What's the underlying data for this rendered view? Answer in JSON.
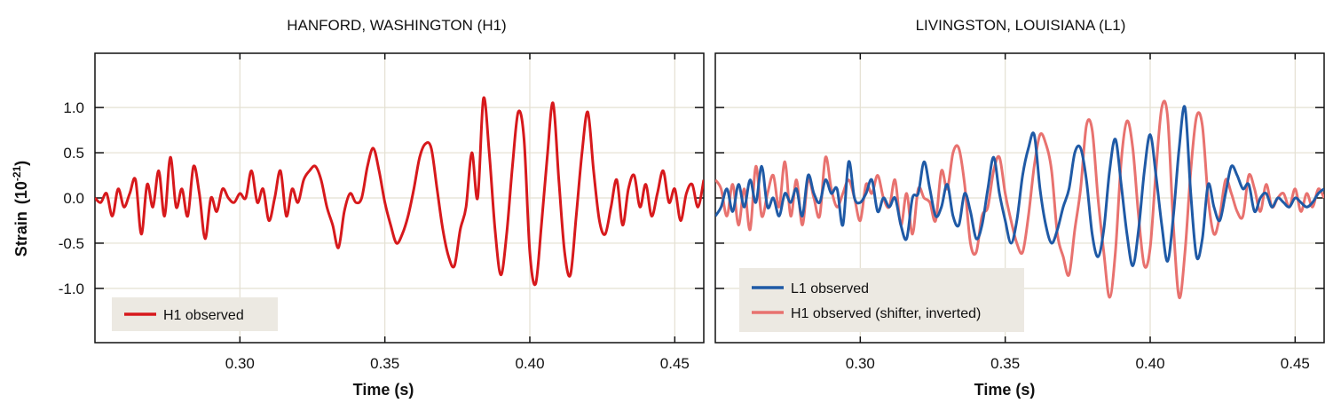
{
  "chart_data": [
    {
      "type": "line",
      "title": "HANFORD, WASHINGTON (H1)",
      "xlabel": "Time (s)",
      "ylabel": "Strain",
      "ylabel_unit_base": "(10",
      "ylabel_unit_exp": "-21",
      "ylabel_unit_close": ")",
      "xlim": [
        0.25,
        0.46
      ],
      "ylim": [
        -1.6,
        1.6
      ],
      "xticks": [
        0.3,
        0.35,
        0.4,
        0.45
      ],
      "xtick_labels": [
        "0.30",
        "0.35",
        "0.40",
        "0.45"
      ],
      "yticks": [
        1.0,
        0.5,
        0.0,
        -0.5,
        -1.0
      ],
      "ytick_labels": [
        "1.0",
        "0.5",
        "0.0",
        "-0.5",
        "-1.0"
      ],
      "grid": true,
      "legend_position": "bottom-left",
      "series": [
        {
          "name": "H1 observed",
          "color": "#d7191c",
          "x": [
            0.25,
            0.252,
            0.254,
            0.256,
            0.258,
            0.26,
            0.262,
            0.264,
            0.266,
            0.268,
            0.27,
            0.272,
            0.274,
            0.276,
            0.278,
            0.28,
            0.282,
            0.284,
            0.286,
            0.288,
            0.29,
            0.292,
            0.294,
            0.296,
            0.298,
            0.3,
            0.302,
            0.304,
            0.306,
            0.308,
            0.31,
            0.312,
            0.314,
            0.316,
            0.318,
            0.32,
            0.322,
            0.324,
            0.326,
            0.328,
            0.33,
            0.332,
            0.334,
            0.336,
            0.338,
            0.34,
            0.342,
            0.344,
            0.346,
            0.348,
            0.35,
            0.352,
            0.354,
            0.356,
            0.358,
            0.36,
            0.362,
            0.364,
            0.366,
            0.368,
            0.37,
            0.372,
            0.374,
            0.376,
            0.378,
            0.38,
            0.382,
            0.384,
            0.386,
            0.388,
            0.39,
            0.392,
            0.394,
            0.396,
            0.398,
            0.4,
            0.402,
            0.404,
            0.406,
            0.408,
            0.41,
            0.412,
            0.414,
            0.416,
            0.418,
            0.42,
            0.422,
            0.424,
            0.426,
            0.428,
            0.43,
            0.432,
            0.434,
            0.436,
            0.438,
            0.44,
            0.442,
            0.444,
            0.446,
            0.448,
            0.45,
            0.452,
            0.454,
            0.456,
            0.458,
            0.46
          ],
          "y": [
            0.0,
            -0.05,
            0.05,
            -0.2,
            0.1,
            -0.1,
            0.05,
            0.2,
            -0.4,
            0.15,
            -0.1,
            0.3,
            -0.2,
            0.45,
            -0.1,
            0.1,
            -0.2,
            0.35,
            0.05,
            -0.45,
            0.0,
            -0.15,
            0.1,
            0.0,
            -0.05,
            0.05,
            0.0,
            0.3,
            -0.05,
            0.1,
            -0.25,
            0.0,
            0.3,
            -0.2,
            0.1,
            -0.05,
            0.2,
            0.3,
            0.35,
            0.2,
            -0.1,
            -0.3,
            -0.55,
            -0.15,
            0.05,
            -0.05,
            0.0,
            0.35,
            0.55,
            0.3,
            -0.05,
            -0.3,
            -0.5,
            -0.4,
            -0.2,
            0.1,
            0.45,
            0.6,
            0.55,
            0.1,
            -0.35,
            -0.65,
            -0.75,
            -0.35,
            -0.1,
            0.5,
            0.0,
            1.1,
            0.5,
            -0.35,
            -0.85,
            -0.4,
            0.35,
            0.95,
            0.65,
            -0.6,
            -0.95,
            -0.3,
            0.45,
            1.05,
            0.2,
            -0.6,
            -0.85,
            -0.2,
            0.5,
            0.95,
            0.3,
            -0.25,
            -0.4,
            -0.1,
            0.2,
            -0.3,
            0.1,
            0.25,
            -0.1,
            0.15,
            -0.2,
            0.05,
            0.3,
            -0.05,
            0.1,
            -0.25,
            0.05,
            0.15,
            -0.1,
            0.2
          ]
        }
      ]
    },
    {
      "type": "line",
      "title": "LIVINGSTON, LOUISIANA (L1)",
      "xlabel": "Time (s)",
      "xlim": [
        0.25,
        0.46
      ],
      "ylim": [
        -1.6,
        1.6
      ],
      "xticks": [
        0.3,
        0.35,
        0.4,
        0.45
      ],
      "xtick_labels": [
        "0.30",
        "0.35",
        "0.40",
        "0.45"
      ],
      "yticks": [
        1.0,
        0.5,
        0.0,
        -0.5,
        -1.0
      ],
      "grid": true,
      "legend_position": "bottom-left",
      "series": [
        {
          "name": "H1 observed (shifter, inverted)",
          "color": "#e8726f",
          "x": [
            0.25,
            0.252,
            0.254,
            0.256,
            0.258,
            0.26,
            0.262,
            0.264,
            0.266,
            0.268,
            0.27,
            0.272,
            0.274,
            0.276,
            0.278,
            0.28,
            0.282,
            0.284,
            0.286,
            0.288,
            0.29,
            0.292,
            0.294,
            0.296,
            0.298,
            0.3,
            0.302,
            0.304,
            0.306,
            0.308,
            0.31,
            0.312,
            0.314,
            0.316,
            0.318,
            0.32,
            0.322,
            0.324,
            0.326,
            0.328,
            0.33,
            0.332,
            0.334,
            0.336,
            0.338,
            0.34,
            0.342,
            0.344,
            0.346,
            0.348,
            0.35,
            0.352,
            0.354,
            0.356,
            0.358,
            0.36,
            0.362,
            0.364,
            0.366,
            0.368,
            0.37,
            0.372,
            0.374,
            0.376,
            0.378,
            0.38,
            0.382,
            0.384,
            0.386,
            0.388,
            0.39,
            0.392,
            0.394,
            0.396,
            0.398,
            0.4,
            0.402,
            0.404,
            0.406,
            0.408,
            0.41,
            0.412,
            0.414,
            0.416,
            0.418,
            0.42,
            0.422,
            0.424,
            0.426,
            0.428,
            0.43,
            0.432,
            0.434,
            0.436,
            0.438,
            0.44,
            0.442,
            0.444,
            0.446,
            0.448,
            0.45,
            0.452,
            0.454,
            0.456,
            0.458,
            0.46
          ],
          "y": [
            0.2,
            0.1,
            -0.2,
            0.15,
            -0.3,
            0.1,
            -0.35,
            0.35,
            -0.2,
            0.05,
            0.25,
            -0.1,
            0.4,
            -0.2,
            0.2,
            -0.3,
            0.2,
            0.0,
            -0.2,
            0.45,
            0.1,
            -0.1,
            0.05,
            0.2,
            0.0,
            -0.25,
            0.15,
            0.05,
            0.25,
            0.0,
            -0.1,
            0.2,
            -0.3,
            0.05,
            -0.4,
            0.1,
            0.0,
            -0.05,
            -0.25,
            0.3,
            0.1,
            0.5,
            0.55,
            0.15,
            -0.5,
            -0.6,
            -0.2,
            -0.1,
            0.3,
            0.45,
            0.05,
            -0.25,
            -0.5,
            -0.6,
            -0.2,
            0.35,
            0.7,
            0.6,
            0.3,
            -0.4,
            -0.65,
            -0.85,
            -0.35,
            0.1,
            0.8,
            0.75,
            0.0,
            -0.6,
            -1.1,
            -0.6,
            0.4,
            0.85,
            0.55,
            -0.2,
            -0.75,
            -0.55,
            0.3,
            1.0,
            0.9,
            -0.3,
            -1.1,
            -0.6,
            0.3,
            0.9,
            0.8,
            0.0,
            -0.4,
            -0.2,
            0.2,
            0.05,
            -0.15,
            -0.2,
            0.25,
            0.1,
            -0.15,
            0.15,
            -0.1,
            0.0,
            0.05,
            -0.1,
            0.1,
            -0.15,
            0.05,
            -0.1,
            0.1,
            0.0
          ]
        },
        {
          "name": "L1 observed",
          "color": "#1f5aa6",
          "x": [
            0.25,
            0.252,
            0.254,
            0.256,
            0.258,
            0.26,
            0.262,
            0.264,
            0.266,
            0.268,
            0.27,
            0.272,
            0.274,
            0.276,
            0.278,
            0.28,
            0.282,
            0.284,
            0.286,
            0.288,
            0.29,
            0.292,
            0.294,
            0.296,
            0.298,
            0.3,
            0.302,
            0.304,
            0.306,
            0.308,
            0.31,
            0.312,
            0.314,
            0.316,
            0.318,
            0.32,
            0.322,
            0.324,
            0.326,
            0.328,
            0.33,
            0.332,
            0.334,
            0.336,
            0.338,
            0.34,
            0.342,
            0.344,
            0.346,
            0.348,
            0.35,
            0.352,
            0.354,
            0.356,
            0.358,
            0.36,
            0.362,
            0.364,
            0.366,
            0.368,
            0.37,
            0.372,
            0.374,
            0.376,
            0.378,
            0.38,
            0.382,
            0.384,
            0.386,
            0.388,
            0.39,
            0.392,
            0.394,
            0.396,
            0.398,
            0.4,
            0.402,
            0.404,
            0.406,
            0.408,
            0.41,
            0.412,
            0.414,
            0.416,
            0.418,
            0.42,
            0.422,
            0.424,
            0.426,
            0.428,
            0.43,
            0.432,
            0.434,
            0.436,
            0.438,
            0.44,
            0.442,
            0.444,
            0.446,
            0.448,
            0.45,
            0.452,
            0.454,
            0.456,
            0.458,
            0.46
          ],
          "y": [
            -0.2,
            -0.1,
            0.1,
            -0.15,
            0.15,
            -0.1,
            0.2,
            -0.05,
            0.35,
            -0.1,
            0.0,
            -0.2,
            0.05,
            -0.05,
            0.1,
            -0.2,
            0.25,
            0.05,
            -0.05,
            0.2,
            0.05,
            0.1,
            -0.3,
            0.4,
            0.0,
            -0.05,
            0.05,
            0.2,
            -0.15,
            0.0,
            -0.1,
            0.0,
            -0.3,
            -0.45,
            0.0,
            0.05,
            0.4,
            0.1,
            -0.2,
            -0.1,
            0.15,
            -0.2,
            -0.3,
            0.05,
            -0.15,
            -0.45,
            -0.3,
            0.1,
            0.45,
            0.05,
            -0.25,
            -0.5,
            -0.25,
            0.25,
            0.55,
            0.7,
            0.1,
            -0.3,
            -0.5,
            -0.35,
            -0.1,
            0.1,
            0.5,
            0.55,
            0.2,
            -0.4,
            -0.65,
            -0.35,
            0.3,
            0.65,
            0.15,
            -0.4,
            -0.75,
            -0.35,
            0.3,
            0.7,
            0.25,
            -0.3,
            -0.7,
            -0.2,
            0.55,
            1.0,
            0.05,
            -0.65,
            -0.45,
            0.15,
            -0.1,
            -0.25,
            0.05,
            0.35,
            0.25,
            0.1,
            0.15,
            -0.15,
            0.0,
            0.05,
            -0.1,
            0.0,
            -0.05,
            -0.1,
            0.0,
            -0.05,
            -0.1,
            -0.05,
            0.05,
            0.1
          ]
        }
      ]
    }
  ]
}
